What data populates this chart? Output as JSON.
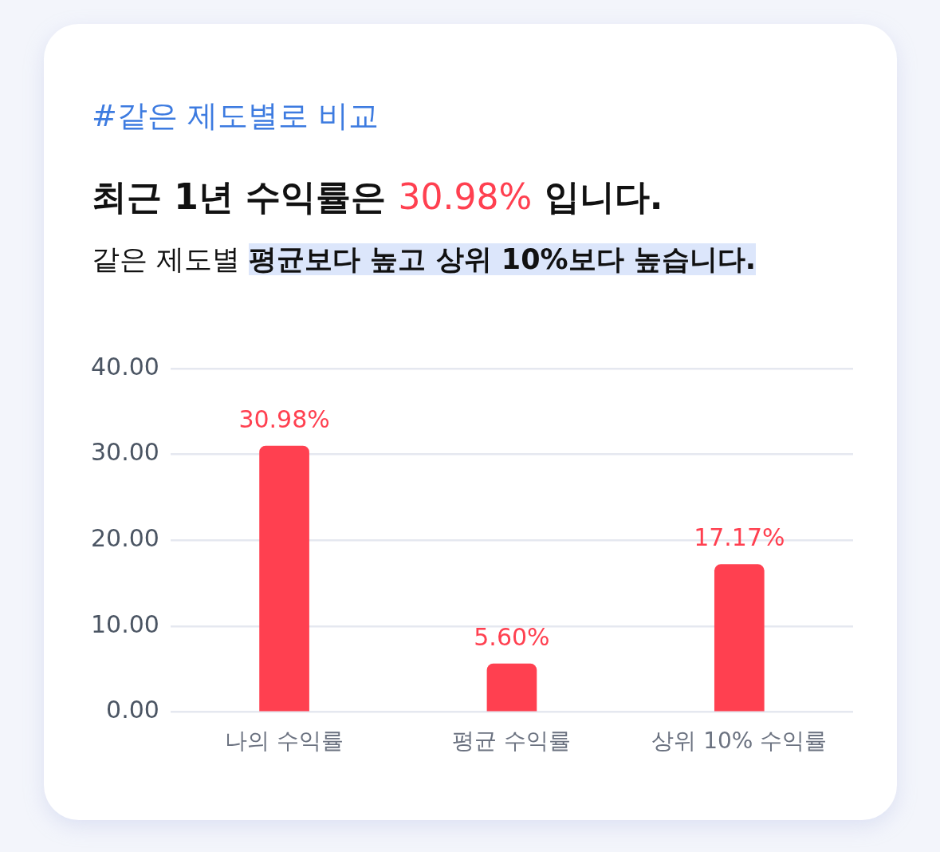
{
  "chart_data": {
    "type": "bar",
    "title": "최근 1년 수익률은 30.98% 입니다.",
    "subtitle": "같은 제도별 평균보다 높고 상위 10%보다 높습니다.",
    "annotations": [
      "#같은 제도별로 비교"
    ],
    "categories": [
      "나의 수익률",
      "평균 수익률",
      "상위 10% 수익률"
    ],
    "values": [
      30.98,
      5.6,
      17.17
    ],
    "value_labels": [
      "30.98%",
      "5.60%",
      "17.17%"
    ],
    "color": "#ff4050",
    "ylim": [
      0,
      40
    ],
    "yticks": [
      {
        "value": 0,
        "label": "0.00"
      },
      {
        "value": 10,
        "label": "10.00"
      },
      {
        "value": 20,
        "label": "20.00"
      },
      {
        "value": 30,
        "label": "30.00"
      },
      {
        "value": 40,
        "label": "40.00"
      }
    ],
    "grid": "y",
    "legend": false
  }
}
